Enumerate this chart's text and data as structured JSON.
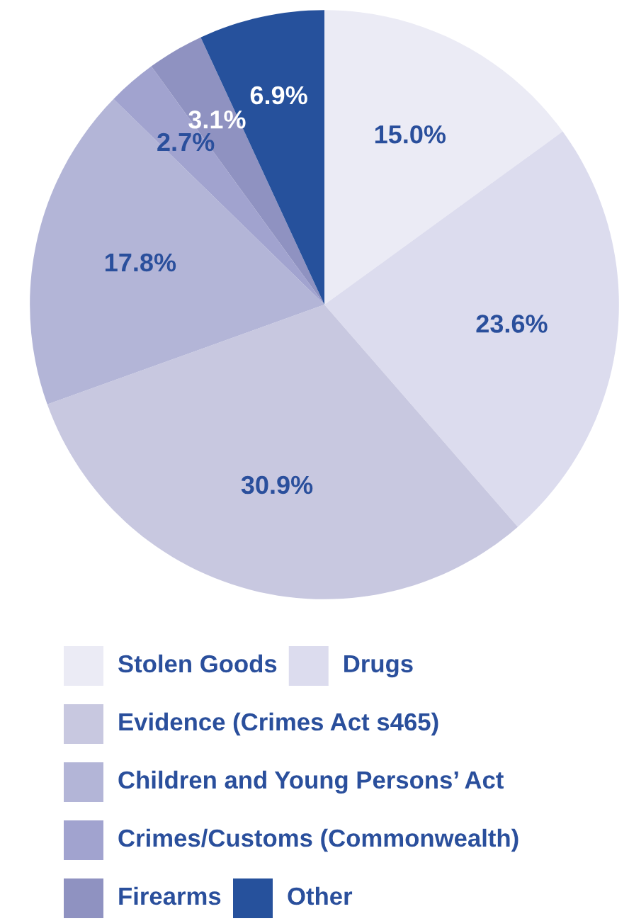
{
  "chart_data": {
    "type": "pie",
    "categories": [
      "Stolen Goods",
      "Drugs",
      "Evidence (Crimes Act s465)",
      "Children and Young Persons’ Act",
      "Crimes/Customs (Commonwealth)",
      "Firearms",
      "Other"
    ],
    "values": [
      15.0,
      23.6,
      30.9,
      17.8,
      2.7,
      3.1,
      6.9
    ],
    "colors": [
      "#ebebf5",
      "#dcdcee",
      "#c8c8e0",
      "#b3b5d7",
      "#a1a3cf",
      "#8f92c1",
      "#26519c"
    ],
    "value_labels": [
      "15.0%",
      "23.6%",
      "30.9%",
      "17.8%",
      "2.7%",
      "3.1%",
      "6.9%"
    ],
    "legend": "bottom"
  }
}
